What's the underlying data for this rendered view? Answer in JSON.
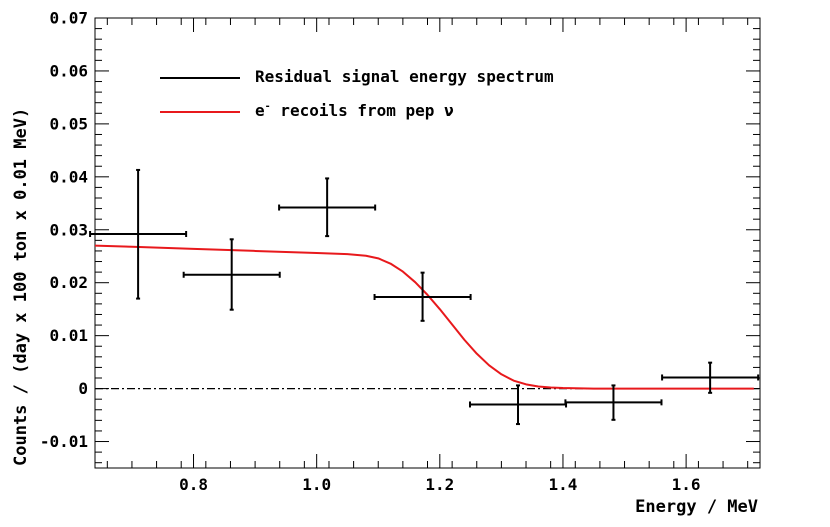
{
  "chart_data": {
    "type": "scatter",
    "xlabel": "Energy / MeV",
    "ylabel": "Counts / (day x 100 ton x 0.01 MeV)",
    "xlim": [
      0.64,
      1.72
    ],
    "ylim": [
      -0.015,
      0.07
    ],
    "x_ticks": [
      0.8,
      1.0,
      1.2,
      1.4,
      1.6
    ],
    "x_tick_labels": [
      "0.8",
      "1.0",
      "1.2",
      "1.4",
      "1.6"
    ],
    "y_ticks": [
      -0.01,
      0,
      0.01,
      0.02,
      0.03,
      0.04,
      0.05,
      0.06,
      0.07
    ],
    "y_tick_labels": [
      "-0.01",
      "0",
      "0.01",
      "0.02",
      "0.03",
      "0.04",
      "0.05",
      "0.06",
      "0.07"
    ],
    "reference_line": {
      "y": 0,
      "style": "dash-dot"
    },
    "legend": [
      {
        "label": "Residual signal energy spectrum",
        "color": "#000000"
      },
      {
        "label_base": "e",
        "label_sup": "-",
        "label_rest": " recoils from pep ν",
        "color": "#e8191c"
      }
    ],
    "series": [
      {
        "name": "Residual signal energy spectrum",
        "type": "errorbar",
        "color": "#000000",
        "points": [
          {
            "x": 0.71,
            "xerr": 0.078,
            "y": 0.0292,
            "yerr_low": 0.0122,
            "yerr_high": 0.0121
          },
          {
            "x": 0.862,
            "xerr": 0.078,
            "y": 0.0215,
            "yerr_low": 0.0066,
            "yerr_high": 0.0067
          },
          {
            "x": 1.017,
            "xerr": 0.078,
            "y": 0.0342,
            "yerr_low": 0.0054,
            "yerr_high": 0.0055
          },
          {
            "x": 1.172,
            "xerr": 0.078,
            "y": 0.0173,
            "yerr_low": 0.0045,
            "yerr_high": 0.0046
          },
          {
            "x": 1.327,
            "xerr": 0.078,
            "y": -0.003,
            "yerr_low": 0.0037,
            "yerr_high": 0.0036
          },
          {
            "x": 1.482,
            "xerr": 0.078,
            "y": -0.0026,
            "yerr_low": 0.0033,
            "yerr_high": 0.0032
          },
          {
            "x": 1.639,
            "xerr": 0.078,
            "y": 0.0021,
            "yerr_low": 0.0029,
            "yerr_high": 0.0028
          }
        ]
      },
      {
        "name": "e- recoils from pep ν",
        "type": "line",
        "color": "#e8191c",
        "x": [
          0.64,
          0.7,
          0.8,
          0.9,
          1.0,
          1.05,
          1.08,
          1.1,
          1.12,
          1.14,
          1.16,
          1.18,
          1.2,
          1.22,
          1.24,
          1.26,
          1.28,
          1.3,
          1.32,
          1.34,
          1.36,
          1.38,
          1.4,
          1.45,
          1.5,
          1.6,
          1.71
        ],
        "y": [
          0.027,
          0.0268,
          0.0264,
          0.026,
          0.0256,
          0.0254,
          0.0251,
          0.0246,
          0.0236,
          0.0221,
          0.0201,
          0.0177,
          0.015,
          0.0121,
          0.0092,
          0.0066,
          0.0044,
          0.0027,
          0.0015,
          0.0008,
          0.0004,
          0.0002,
          0.0001,
          0.0,
          0.0,
          0.0,
          0.0
        ]
      }
    ]
  }
}
